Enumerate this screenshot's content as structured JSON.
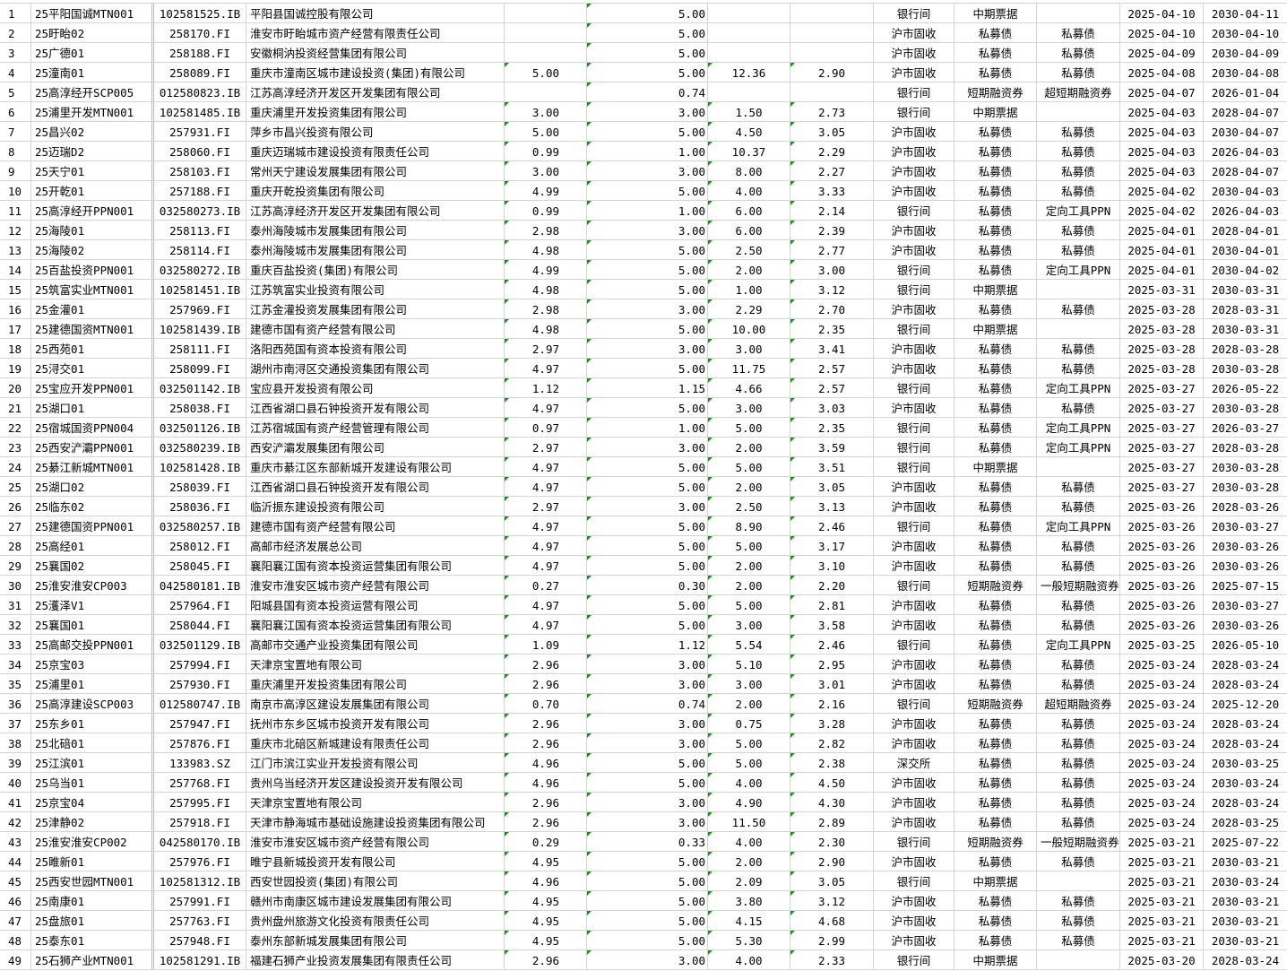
{
  "colors": {
    "grid": "#d4d4d4",
    "number_as_text_marker": "#1e8c1e"
  },
  "rows": [
    [
      "1",
      "25平阳国诚MTN001",
      "102581525.IB",
      "平阳县国诚控股有限公司",
      "",
      "5.00",
      "",
      "",
      "银行间",
      "中期票据",
      "",
      "2025-04-10",
      "2030-04-11"
    ],
    [
      "2",
      "25盱眙02",
      "258170.FI",
      "淮安市盱眙城市资产经营有限责任公司",
      "",
      "5.00",
      "",
      "",
      "沪市固收",
      "私募债",
      "私募债",
      "2025-04-10",
      "2030-04-10"
    ],
    [
      "3",
      "25广德01",
      "258188.FI",
      "安徽桐汭投资经营集团有限公司",
      "",
      "5.00",
      "",
      "",
      "沪市固收",
      "私募债",
      "私募债",
      "2025-04-09",
      "2030-04-09"
    ],
    [
      "4",
      "25潼南01",
      "258089.FI",
      "重庆市潼南区城市建设投资(集团)有限公司",
      "5.00",
      "5.00",
      "12.36",
      "2.90",
      "沪市固收",
      "私募债",
      "私募债",
      "2025-04-08",
      "2030-04-08"
    ],
    [
      "5",
      "25高淳经开SCP005",
      "012580823.IB",
      "江苏高淳经济开发区开发集团有限公司",
      "",
      "0.74",
      "",
      "",
      "银行间",
      "短期融资券",
      "超短期融资券",
      "2025-04-07",
      "2026-01-04"
    ],
    [
      "6",
      "25浦里开发MTN001",
      "102581485.IB",
      "重庆浦里开发投资集团有限公司",
      "3.00",
      "3.00",
      "1.50",
      "2.73",
      "银行间",
      "中期票据",
      "",
      "2025-04-03",
      "2028-04-07"
    ],
    [
      "7",
      "25昌兴02",
      "257931.FI",
      "萍乡市昌兴投资有限公司",
      "5.00",
      "5.00",
      "4.50",
      "3.05",
      "沪市固收",
      "私募债",
      "私募债",
      "2025-04-03",
      "2030-04-07"
    ],
    [
      "8",
      "25迈瑞D2",
      "258060.FI",
      "重庆迈瑞城市建设投资有限责任公司",
      "0.99",
      "1.00",
      "10.37",
      "2.29",
      "沪市固收",
      "私募债",
      "私募债",
      "2025-04-03",
      "2026-04-03"
    ],
    [
      "9",
      "25天宁01",
      "258103.FI",
      "常州天宁建设发展集团有限公司",
      "3.00",
      "3.00",
      "8.00",
      "2.27",
      "沪市固收",
      "私募债",
      "私募债",
      "2025-04-03",
      "2028-04-07"
    ],
    [
      "10",
      "25开乾01",
      "257188.FI",
      "重庆开乾投资集团有限公司",
      "4.99",
      "5.00",
      "4.00",
      "3.33",
      "沪市固收",
      "私募债",
      "私募债",
      "2025-04-02",
      "2030-04-03"
    ],
    [
      "11",
      "25高淳经开PPN001",
      "032580273.IB",
      "江苏高淳经济开发区开发集团有限公司",
      "0.99",
      "1.00",
      "6.00",
      "2.14",
      "银行间",
      "私募债",
      "定向工具PPN",
      "2025-04-02",
      "2026-04-03"
    ],
    [
      "12",
      "25海陵01",
      "258113.FI",
      "泰州海陵城市发展集团有限公司",
      "2.98",
      "3.00",
      "6.00",
      "2.39",
      "沪市固收",
      "私募债",
      "私募债",
      "2025-04-01",
      "2028-04-01"
    ],
    [
      "13",
      "25海陵02",
      "258114.FI",
      "泰州海陵城市发展集团有限公司",
      "4.98",
      "5.00",
      "2.50",
      "2.77",
      "沪市固收",
      "私募债",
      "私募债",
      "2025-04-01",
      "2030-04-01"
    ],
    [
      "14",
      "25百盐投资PPN001",
      "032580272.IB",
      "重庆百盐投资(集团)有限公司",
      "4.99",
      "5.00",
      "2.00",
      "3.00",
      "银行间",
      "私募债",
      "定向工具PPN",
      "2025-04-01",
      "2030-04-02"
    ],
    [
      "15",
      "25筑富实业MTN001",
      "102581451.IB",
      "江苏筑富实业投资有限公司",
      "4.98",
      "5.00",
      "1.00",
      "3.12",
      "银行间",
      "中期票据",
      "",
      "2025-03-31",
      "2030-03-31"
    ],
    [
      "16",
      "25金灌01",
      "257969.FI",
      "江苏金灌投资发展集团有限公司",
      "2.98",
      "3.00",
      "2.29",
      "2.70",
      "沪市固收",
      "私募债",
      "私募债",
      "2025-03-28",
      "2028-03-31"
    ],
    [
      "17",
      "25建德国资MTN001",
      "102581439.IB",
      "建德市国有资产经营有限公司",
      "4.98",
      "5.00",
      "10.00",
      "2.35",
      "银行间",
      "中期票据",
      "",
      "2025-03-28",
      "2030-03-31"
    ],
    [
      "18",
      "25西苑01",
      "258111.FI",
      "洛阳西苑国有资本投资有限公司",
      "2.97",
      "3.00",
      "3.00",
      "3.41",
      "沪市固收",
      "私募债",
      "私募债",
      "2025-03-28",
      "2028-03-28"
    ],
    [
      "19",
      "25浔交01",
      "258099.FI",
      "湖州市南浔区交通投资集团有限公司",
      "4.97",
      "5.00",
      "11.75",
      "2.57",
      "沪市固收",
      "私募债",
      "私募债",
      "2025-03-28",
      "2030-03-28"
    ],
    [
      "20",
      "25宝应开发PPN001",
      "032501142.IB",
      "宝应县开发投资有限公司",
      "1.12",
      "1.15",
      "4.66",
      "2.57",
      "银行间",
      "私募债",
      "定向工具PPN",
      "2025-03-27",
      "2026-05-22"
    ],
    [
      "21",
      "25湖口01",
      "258038.FI",
      "江西省湖口县石钟投资开发有限公司",
      "4.97",
      "5.00",
      "3.00",
      "3.03",
      "沪市固收",
      "私募债",
      "私募债",
      "2025-03-27",
      "2030-03-28"
    ],
    [
      "22",
      "25宿城国资PPN004",
      "032501126.IB",
      "江苏宿城国有资产经营管理有限公司",
      "0.97",
      "1.00",
      "5.00",
      "2.35",
      "银行间",
      "私募债",
      "定向工具PPN",
      "2025-03-27",
      "2026-03-27"
    ],
    [
      "23",
      "25西安浐灞PPN001",
      "032580239.IB",
      "西安浐灞发展集团有限公司",
      "2.97",
      "3.00",
      "2.00",
      "3.59",
      "银行间",
      "私募债",
      "定向工具PPN",
      "2025-03-27",
      "2028-03-28"
    ],
    [
      "24",
      "25綦江新城MTN001",
      "102581428.IB",
      "重庆市綦江区东部新城开发建设有限公司",
      "4.97",
      "5.00",
      "5.00",
      "3.51",
      "银行间",
      "中期票据",
      "",
      "2025-03-27",
      "2030-03-28"
    ],
    [
      "25",
      "25湖口02",
      "258039.FI",
      "江西省湖口县石钟投资开发有限公司",
      "4.97",
      "5.00",
      "2.00",
      "3.05",
      "沪市固收",
      "私募债",
      "私募债",
      "2025-03-27",
      "2030-03-28"
    ],
    [
      "26",
      "25临东02",
      "258036.FI",
      "临沂振东建设投资有限公司",
      "2.97",
      "3.00",
      "2.50",
      "3.13",
      "沪市固收",
      "私募债",
      "私募债",
      "2025-03-26",
      "2028-03-26"
    ],
    [
      "27",
      "25建德国资PPN001",
      "032580257.IB",
      "建德市国有资产经营有限公司",
      "4.97",
      "5.00",
      "8.90",
      "2.46",
      "银行间",
      "私募债",
      "定向工具PPN",
      "2025-03-26",
      "2030-03-27"
    ],
    [
      "28",
      "25高经01",
      "258012.FI",
      "高邮市经济发展总公司",
      "4.97",
      "5.00",
      "5.00",
      "3.17",
      "沪市固收",
      "私募债",
      "私募债",
      "2025-03-26",
      "2030-03-26"
    ],
    [
      "29",
      "25襄国02",
      "258045.FI",
      "襄阳襄江国有资本投资运营集团有限公司",
      "4.97",
      "5.00",
      "2.00",
      "3.10",
      "沪市固收",
      "私募债",
      "私募债",
      "2025-03-26",
      "2030-03-26"
    ],
    [
      "30",
      "25淮安淮安CP003",
      "042580181.IB",
      "淮安市淮安区城市资产经营有限公司",
      "0.27",
      "0.30",
      "2.00",
      "2.20",
      "银行间",
      "短期融资券",
      "一般短期融资券",
      "2025-03-26",
      "2025-07-15"
    ],
    [
      "31",
      "25濩泽V1",
      "257964.FI",
      "阳城县国有资本投资运营有限公司",
      "4.97",
      "5.00",
      "5.00",
      "2.81",
      "沪市固收",
      "私募债",
      "私募债",
      "2025-03-26",
      "2030-03-27"
    ],
    [
      "32",
      "25襄国01",
      "258044.FI",
      "襄阳襄江国有资本投资运营集团有限公司",
      "4.97",
      "5.00",
      "3.00",
      "3.58",
      "沪市固收",
      "私募债",
      "私募债",
      "2025-03-26",
      "2030-03-26"
    ],
    [
      "33",
      "25高邮交投PPN001",
      "032501129.IB",
      "高邮市交通产业投资集团有限公司",
      "1.09",
      "1.12",
      "5.54",
      "2.46",
      "银行间",
      "私募债",
      "定向工具PPN",
      "2025-03-25",
      "2026-05-10"
    ],
    [
      "34",
      "25京宝03",
      "257994.FI",
      "天津京宝置地有限公司",
      "2.96",
      "3.00",
      "5.10",
      "2.95",
      "沪市固收",
      "私募债",
      "私募债",
      "2025-03-24",
      "2028-03-24"
    ],
    [
      "35",
      "25浦里01",
      "257930.FI",
      "重庆浦里开发投资集团有限公司",
      "2.96",
      "3.00",
      "3.00",
      "3.01",
      "沪市固收",
      "私募债",
      "私募债",
      "2025-03-24",
      "2028-03-24"
    ],
    [
      "36",
      "25高淳建设SCP003",
      "012580747.IB",
      "南京市高淳区建设发展集团有限公司",
      "0.70",
      "0.74",
      "2.00",
      "2.16",
      "银行间",
      "短期融资券",
      "超短期融资券",
      "2025-03-24",
      "2025-12-20"
    ],
    [
      "37",
      "25东乡01",
      "257947.FI",
      "抚州市东乡区城市投资开发有限公司",
      "2.96",
      "3.00",
      "0.75",
      "3.28",
      "沪市固收",
      "私募债",
      "私募债",
      "2025-03-24",
      "2028-03-24"
    ],
    [
      "38",
      "25北碚01",
      "257876.FI",
      "重庆市北碚区新城建设有限责任公司",
      "2.96",
      "3.00",
      "5.00",
      "2.82",
      "沪市固收",
      "私募债",
      "私募债",
      "2025-03-24",
      "2028-03-24"
    ],
    [
      "39",
      "25江滨01",
      "133983.SZ",
      "江门市滨江实业开发投资有限公司",
      "4.96",
      "5.00",
      "5.00",
      "2.38",
      "深交所",
      "私募债",
      "私募债",
      "2025-03-24",
      "2030-03-25"
    ],
    [
      "40",
      "25乌当01",
      "257768.FI",
      "贵州乌当经济开发区建设投资开发有限公司",
      "4.96",
      "5.00",
      "4.00",
      "4.50",
      "沪市固收",
      "私募债",
      "私募债",
      "2025-03-24",
      "2030-03-24"
    ],
    [
      "41",
      "25京宝04",
      "257995.FI",
      "天津京宝置地有限公司",
      "2.96",
      "3.00",
      "4.90",
      "4.30",
      "沪市固收",
      "私募债",
      "私募债",
      "2025-03-24",
      "2028-03-24"
    ],
    [
      "42",
      "25津静02",
      "257918.FI",
      "天津市静海城市基础设施建设投资集团有限公司",
      "2.96",
      "3.00",
      "11.50",
      "2.89",
      "沪市固收",
      "私募债",
      "私募债",
      "2025-03-24",
      "2028-03-25"
    ],
    [
      "43",
      "25淮安淮安CP002",
      "042580170.IB",
      "淮安市淮安区城市资产经营有限公司",
      "0.29",
      "0.33",
      "4.00",
      "2.30",
      "银行间",
      "短期融资券",
      "一般短期融资券",
      "2025-03-21",
      "2025-07-22"
    ],
    [
      "44",
      "25睢新01",
      "257976.FI",
      "睢宁县新城投资开发有限公司",
      "4.95",
      "5.00",
      "2.00",
      "2.90",
      "沪市固收",
      "私募债",
      "私募债",
      "2025-03-21",
      "2030-03-21"
    ],
    [
      "45",
      "25西安世园MTN001",
      "102581312.IB",
      "西安世园投资(集团)有限公司",
      "4.96",
      "5.00",
      "2.09",
      "3.05",
      "银行间",
      "中期票据",
      "",
      "2025-03-21",
      "2030-03-24"
    ],
    [
      "46",
      "25南康01",
      "257991.FI",
      "赣州市南康区城市建设发展集团有限公司",
      "4.95",
      "5.00",
      "3.80",
      "3.12",
      "沪市固收",
      "私募债",
      "私募债",
      "2025-03-21",
      "2030-03-21"
    ],
    [
      "47",
      "25盘旅01",
      "257763.FI",
      "贵州盘州旅游文化投资有限责任公司",
      "4.95",
      "5.00",
      "4.15",
      "4.68",
      "沪市固收",
      "私募债",
      "私募债",
      "2025-03-21",
      "2030-03-21"
    ],
    [
      "48",
      "25泰东01",
      "257948.FI",
      "泰州东部新城发展集团有限公司",
      "4.95",
      "5.00",
      "5.30",
      "2.99",
      "沪市固收",
      "私募债",
      "私募债",
      "2025-03-21",
      "2030-03-21"
    ],
    [
      "49",
      "25石狮产业MTN001",
      "102581291.IB",
      "福建石狮产业投资发展集团有限责任公司",
      "2.96",
      "3.00",
      "4.00",
      "2.33",
      "银行间",
      "中期票据",
      "",
      "2025-03-20",
      "2028-03-24"
    ]
  ]
}
